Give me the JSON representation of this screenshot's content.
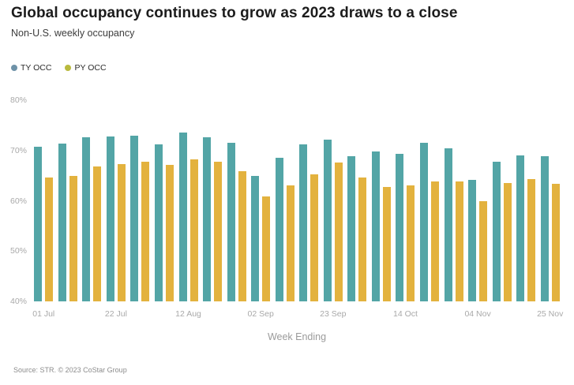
{
  "header": {
    "title": "Global occupancy continues to grow as 2023 draws to a close",
    "subtitle": "Non-U.S. weekly occupancy"
  },
  "legend": {
    "items": [
      {
        "label": "TY OCC",
        "color": "#6e92a8"
      },
      {
        "label": "PY OCC",
        "color": "#b9ba3e"
      }
    ]
  },
  "chart_data": {
    "type": "bar",
    "title": "Global occupancy continues to grow as 2023 draws to a close",
    "subtitle": "Non-U.S. weekly occupancy",
    "xlabel": "Week Ending",
    "ylabel": "",
    "ylim": [
      40,
      80
    ],
    "grid": false,
    "legend_position": "top-left",
    "bar_baseline": 40,
    "y_tick_values": [
      80,
      70,
      60,
      50,
      40
    ],
    "y_tick_labels": [
      "80%",
      "70%",
      "60%",
      "50%",
      "40%"
    ],
    "categories": [
      "01 Jul",
      "08 Jul",
      "15 Jul",
      "22 Jul",
      "29 Jul",
      "05 Aug",
      "12 Aug",
      "19 Aug",
      "26 Aug",
      "02 Sep",
      "09 Sep",
      "16 Sep",
      "23 Sep",
      "30 Sep",
      "07 Oct",
      "14 Oct",
      "21 Oct",
      "28 Oct",
      "04 Nov",
      "11 Nov",
      "18 Nov",
      "25 Nov"
    ],
    "visible_tick_labels": [
      "01 Jul",
      "22 Jul",
      "12 Aug",
      "02 Sep",
      "23 Sep",
      "14 Oct",
      "04 Nov",
      "25 Nov"
    ],
    "series": [
      {
        "name": "TY OCC",
        "color": "#53a5a6",
        "values": [
          70.8,
          71.3,
          72.6,
          72.8,
          73.0,
          71.2,
          73.5,
          72.7,
          71.6,
          65.0,
          68.5,
          71.2,
          72.2,
          68.8,
          69.8,
          69.3,
          71.5,
          70.4,
          64.2,
          67.8,
          69.0,
          68.9
        ]
      },
      {
        "name": "PY OCC",
        "color": "#e3b23e",
        "values": [
          64.7,
          65.0,
          66.9,
          67.3,
          67.8,
          67.2,
          68.3,
          67.8,
          65.9,
          60.8,
          63.0,
          65.3,
          67.6,
          64.6,
          62.7,
          63.0,
          63.8,
          63.8,
          60.0,
          63.6,
          64.3,
          63.3
        ]
      }
    ]
  },
  "footer": {
    "source": "Source: STR. © 2023 CoStar Group"
  }
}
